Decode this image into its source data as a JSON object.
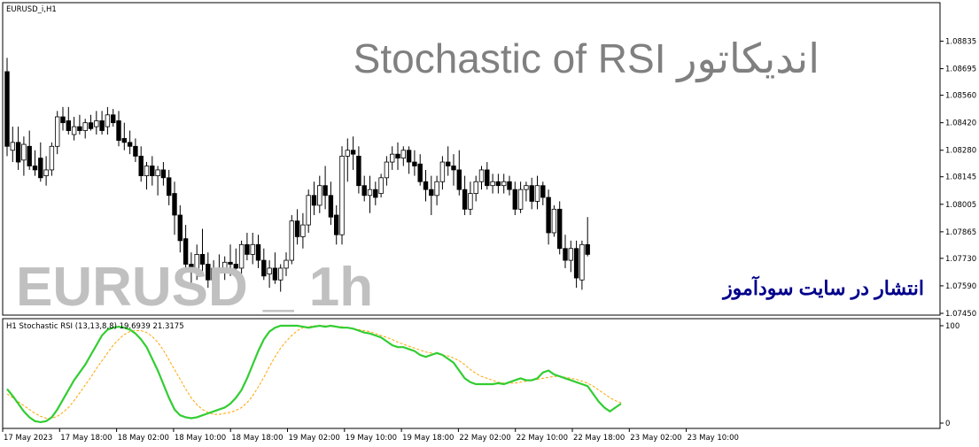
{
  "window": {
    "symbol_label": "EURUSD_i,H1",
    "headline": "Stochastic of RSI اندیکاتور",
    "watermark_symbol": "EURUSD _ 1h",
    "publish_note": "انتشار در سایت سودآموز"
  },
  "colors": {
    "background": "#ffffff",
    "grid_border": "#000000",
    "candle_bull": "#ffffff",
    "candle_bear": "#000000",
    "stoch_main": "#32cd32",
    "stoch_signal": "#ffa500",
    "headline": "#808080",
    "watermark": "#c0c0c0",
    "publish_note": "#00008b"
  },
  "chart_data": [
    {
      "type": "candlestick",
      "title": "EURUSD_i,H1",
      "ylim": [
        1.0745,
        1.0895
      ],
      "y_ticks": [
        "1.08835",
        "1.08695",
        "1.08560",
        "1.08420",
        "1.08280",
        "1.08145",
        "1.08005",
        "1.07865",
        "1.07730",
        "1.07590",
        "1.07450"
      ],
      "candles": [
        [
          1.0868,
          1.0875,
          1.0825,
          1.083
        ],
        [
          1.0828,
          1.084,
          1.0822,
          1.0832
        ],
        [
          1.0832,
          1.084,
          1.0818,
          1.0822
        ],
        [
          1.0823,
          1.0835,
          1.0815,
          1.0831
        ],
        [
          1.083,
          1.0838,
          1.0818,
          1.082
        ],
        [
          1.082,
          1.0828,
          1.0815,
          1.0818
        ],
        [
          1.0824,
          1.0832,
          1.0812,
          1.0814
        ],
        [
          1.0815,
          1.0825,
          1.081,
          1.0818
        ],
        [
          1.0818,
          1.0832,
          1.0815,
          1.083
        ],
        [
          1.083,
          1.0848,
          1.0826,
          1.0845
        ],
        [
          1.0845,
          1.085,
          1.0838,
          1.0842
        ],
        [
          1.0843,
          1.085,
          1.0836,
          1.0838
        ],
        [
          1.0836,
          1.0845,
          1.0833,
          1.084
        ],
        [
          1.084,
          1.0846,
          1.0836,
          1.0838
        ],
        [
          1.0838,
          1.0844,
          1.0834,
          1.0842
        ],
        [
          1.0842,
          1.0846,
          1.0838,
          1.0839
        ],
        [
          1.084,
          1.0848,
          1.0836,
          1.0843
        ],
        [
          1.0843,
          1.0848,
          1.0836,
          1.0838
        ],
        [
          1.084,
          1.085,
          1.0836,
          1.0846
        ],
        [
          1.0846,
          1.0849,
          1.084,
          1.0842
        ],
        [
          1.0843,
          1.0848,
          1.083,
          1.0833
        ],
        [
          1.0834,
          1.0842,
          1.0828,
          1.0832
        ],
        [
          1.0832,
          1.0838,
          1.0826,
          1.083
        ],
        [
          1.083,
          1.0834,
          1.0822,
          1.0825
        ],
        [
          1.0825,
          1.083,
          1.0812,
          1.0815
        ],
        [
          1.0815,
          1.0822,
          1.0808,
          1.082
        ],
        [
          1.082,
          1.0825,
          1.081,
          1.0815
        ],
        [
          1.0815,
          1.082,
          1.0805,
          1.0818
        ],
        [
          1.0818,
          1.0822,
          1.081,
          1.0814
        ],
        [
          1.0814,
          1.0818,
          1.08,
          1.0805
        ],
        [
          1.0806,
          1.0812,
          1.0785,
          1.0795
        ],
        [
          1.0795,
          1.08,
          1.0776,
          1.0782
        ],
        [
          1.0783,
          1.079,
          1.0766,
          1.077
        ],
        [
          1.077,
          1.0776,
          1.076,
          1.0766
        ],
        [
          1.0766,
          1.078,
          1.0762,
          1.0775
        ],
        [
          1.0775,
          1.0788,
          1.0766,
          1.077
        ],
        [
          1.077,
          1.0776,
          1.0758,
          1.0762
        ],
        [
          1.0762,
          1.0772,
          1.0758,
          1.0768
        ],
        [
          1.0768,
          1.0775,
          1.0762,
          1.0766
        ],
        [
          1.0766,
          1.0774,
          1.0762,
          1.0771
        ],
        [
          1.0771,
          1.078,
          1.0764,
          1.077
        ],
        [
          1.077,
          1.0778,
          1.0764,
          1.0768
        ],
        [
          1.0768,
          1.0782,
          1.0765,
          1.078
        ],
        [
          1.078,
          1.0786,
          1.0772,
          1.0775
        ],
        [
          1.0775,
          1.0786,
          1.077,
          1.078
        ],
        [
          1.078,
          1.0785,
          1.0768,
          1.0772
        ],
        [
          1.0772,
          1.0778,
          1.0762,
          1.0764
        ],
        [
          1.0765,
          1.0772,
          1.0758,
          1.0768
        ],
        [
          1.0768,
          1.0776,
          1.076,
          1.0762
        ],
        [
          1.0762,
          1.077,
          1.0756,
          1.0768
        ],
        [
          1.0768,
          1.0776,
          1.0764,
          1.0772
        ],
        [
          1.0772,
          1.0795,
          1.077,
          1.0792
        ],
        [
          1.0792,
          1.0798,
          1.078,
          1.0784
        ],
        [
          1.0784,
          1.0796,
          1.0778,
          1.079
        ],
        [
          1.079,
          1.0808,
          1.0786,
          1.0805
        ],
        [
          1.0805,
          1.0812,
          1.0795,
          1.08
        ],
        [
          1.08,
          1.0815,
          1.0796,
          1.081
        ],
        [
          1.081,
          1.082,
          1.0798,
          1.0805
        ],
        [
          1.0805,
          1.0812,
          1.079,
          1.0794
        ],
        [
          1.0795,
          1.08,
          1.078,
          1.0785
        ],
        [
          1.0785,
          1.083,
          1.078,
          1.0825
        ],
        [
          1.0825,
          1.0834,
          1.0812,
          1.0828
        ],
        [
          1.0828,
          1.0835,
          1.0818,
          1.0826
        ],
        [
          1.0825,
          1.083,
          1.0806,
          1.081
        ],
        [
          1.081,
          1.0815,
          1.0802,
          1.0805
        ],
        [
          1.0805,
          1.0815,
          1.0796,
          1.0808
        ],
        [
          1.0808,
          1.0812,
          1.08,
          1.0804
        ],
        [
          1.0806,
          1.0816,
          1.0804,
          1.0814
        ],
        [
          1.0814,
          1.0825,
          1.081,
          1.0822
        ],
        [
          1.0822,
          1.083,
          1.0818,
          1.0826
        ],
        [
          1.0826,
          1.0832,
          1.0818,
          1.0824
        ],
        [
          1.0824,
          1.083,
          1.082,
          1.0828
        ],
        [
          1.0828,
          1.083,
          1.0816,
          1.0822
        ],
        [
          1.0822,
          1.0828,
          1.0815,
          1.082
        ],
        [
          1.0821,
          1.0826,
          1.081,
          1.0812
        ],
        [
          1.0812,
          1.0818,
          1.0802,
          1.0808
        ],
        [
          1.0808,
          1.0815,
          1.0795,
          1.0805
        ],
        [
          1.0805,
          1.0815,
          1.08,
          1.0812
        ],
        [
          1.0812,
          1.0825,
          1.0808,
          1.0822
        ],
        [
          1.0822,
          1.083,
          1.0815,
          1.082
        ],
        [
          1.082,
          1.0826,
          1.081,
          1.0818
        ],
        [
          1.0818,
          1.0828,
          1.0805,
          1.0808
        ],
        [
          1.0808,
          1.0815,
          1.0795,
          1.0798
        ],
        [
          1.0798,
          1.0812,
          1.0795,
          1.0806
        ],
        [
          1.0806,
          1.0815,
          1.0802,
          1.0812
        ],
        [
          1.0812,
          1.082,
          1.0808,
          1.0818
        ],
        [
          1.0818,
          1.0822,
          1.0808,
          1.081
        ],
        [
          1.081,
          1.0816,
          1.0806,
          1.0812
        ],
        [
          1.0812,
          1.0816,
          1.0806,
          1.081
        ],
        [
          1.081,
          1.0816,
          1.0806,
          1.0812
        ],
        [
          1.0812,
          1.0815,
          1.0805,
          1.0808
        ],
        [
          1.0808,
          1.0812,
          1.0795,
          1.0798
        ],
        [
          1.0798,
          1.0812,
          1.0796,
          1.0808
        ],
        [
          1.0808,
          1.0812,
          1.0802,
          1.081
        ],
        [
          1.081,
          1.0814,
          1.0798,
          1.0802
        ],
        [
          1.0802,
          1.0815,
          1.0798,
          1.081
        ],
        [
          1.081,
          1.0812,
          1.08,
          1.0804
        ],
        [
          1.0804,
          1.0808,
          1.078,
          1.0786
        ],
        [
          1.0786,
          1.08,
          1.0784,
          1.0798
        ],
        [
          1.0798,
          1.0802,
          1.0775,
          1.0778
        ],
        [
          1.0778,
          1.0785,
          1.0768,
          1.0772
        ],
        [
          1.0772,
          1.0782,
          1.0766,
          1.0778
        ],
        [
          1.0778,
          1.0782,
          1.0758,
          1.0763
        ],
        [
          1.0762,
          1.0782,
          1.0757,
          1.078
        ],
        [
          1.078,
          1.0794,
          1.0774,
          1.0775
        ]
      ]
    },
    {
      "type": "line",
      "title": "H1 Stochastic RSI (13,13,8,8) 19.6939 21.3175",
      "ylim": [
        0,
        100
      ],
      "y_ticks": [
        "100",
        "0"
      ],
      "series": [
        {
          "values": [
            35,
            28,
            20,
            12,
            6,
            2,
            1,
            2,
            6,
            14,
            24,
            34,
            44,
            52,
            60,
            70,
            80,
            90,
            96,
            98,
            99,
            98,
            96,
            92,
            86,
            78,
            66,
            54,
            40,
            26,
            14,
            8,
            6,
            5,
            6,
            8,
            10,
            12,
            14,
            16,
            20,
            26,
            34,
            46,
            60,
            74,
            86,
            94,
            98,
            100,
            100,
            100,
            100,
            99,
            98,
            99,
            100,
            99,
            100,
            99,
            98,
            98,
            97,
            95,
            93,
            92,
            90,
            88,
            84,
            80,
            78,
            78,
            76,
            74,
            70,
            68,
            70,
            72,
            70,
            66,
            62,
            54,
            46,
            42,
            40,
            40,
            40,
            40,
            41,
            40,
            42,
            44,
            46,
            44,
            44,
            46,
            52,
            54,
            50,
            48,
            46,
            44,
            42,
            40,
            38,
            30,
            22,
            16,
            12,
            16,
            20
          ]
        },
        {
          "values": [
            30,
            26,
            22,
            18,
            14,
            10,
            7,
            5,
            5,
            7,
            11,
            16,
            23,
            31,
            39,
            47,
            56,
            64,
            72,
            80,
            86,
            91,
            94,
            95,
            95,
            93,
            89,
            83,
            75,
            65,
            55,
            45,
            35,
            26,
            19,
            14,
            11,
            9,
            9,
            10,
            11,
            13,
            16,
            21,
            28,
            37,
            47,
            58,
            68,
            77,
            84,
            90,
            95,
            98,
            99,
            100,
            100,
            100,
            99,
            99,
            99,
            98,
            97,
            96,
            95,
            94,
            92,
            90,
            88,
            86,
            83,
            81,
            79,
            77,
            75,
            73,
            72,
            71,
            70,
            69,
            67,
            64,
            60,
            55,
            51,
            48,
            46,
            44,
            42,
            41,
            41,
            41,
            42,
            43,
            44,
            45,
            46,
            47,
            48,
            48,
            47,
            46,
            45,
            43,
            41,
            38,
            34,
            30,
            26,
            23,
            21
          ]
        }
      ]
    }
  ],
  "x_axis": {
    "labels": [
      "17 May 2023",
      "17 May 18:00",
      "18 May 02:00",
      "18 May 10:00",
      "18 May 18:00",
      "19 May 02:00",
      "19 May 10:00",
      "19 May 18:00",
      "22 May 02:00",
      "22 May 10:00",
      "22 May 18:00",
      "23 May 02:00",
      "23 May 10:00"
    ]
  }
}
